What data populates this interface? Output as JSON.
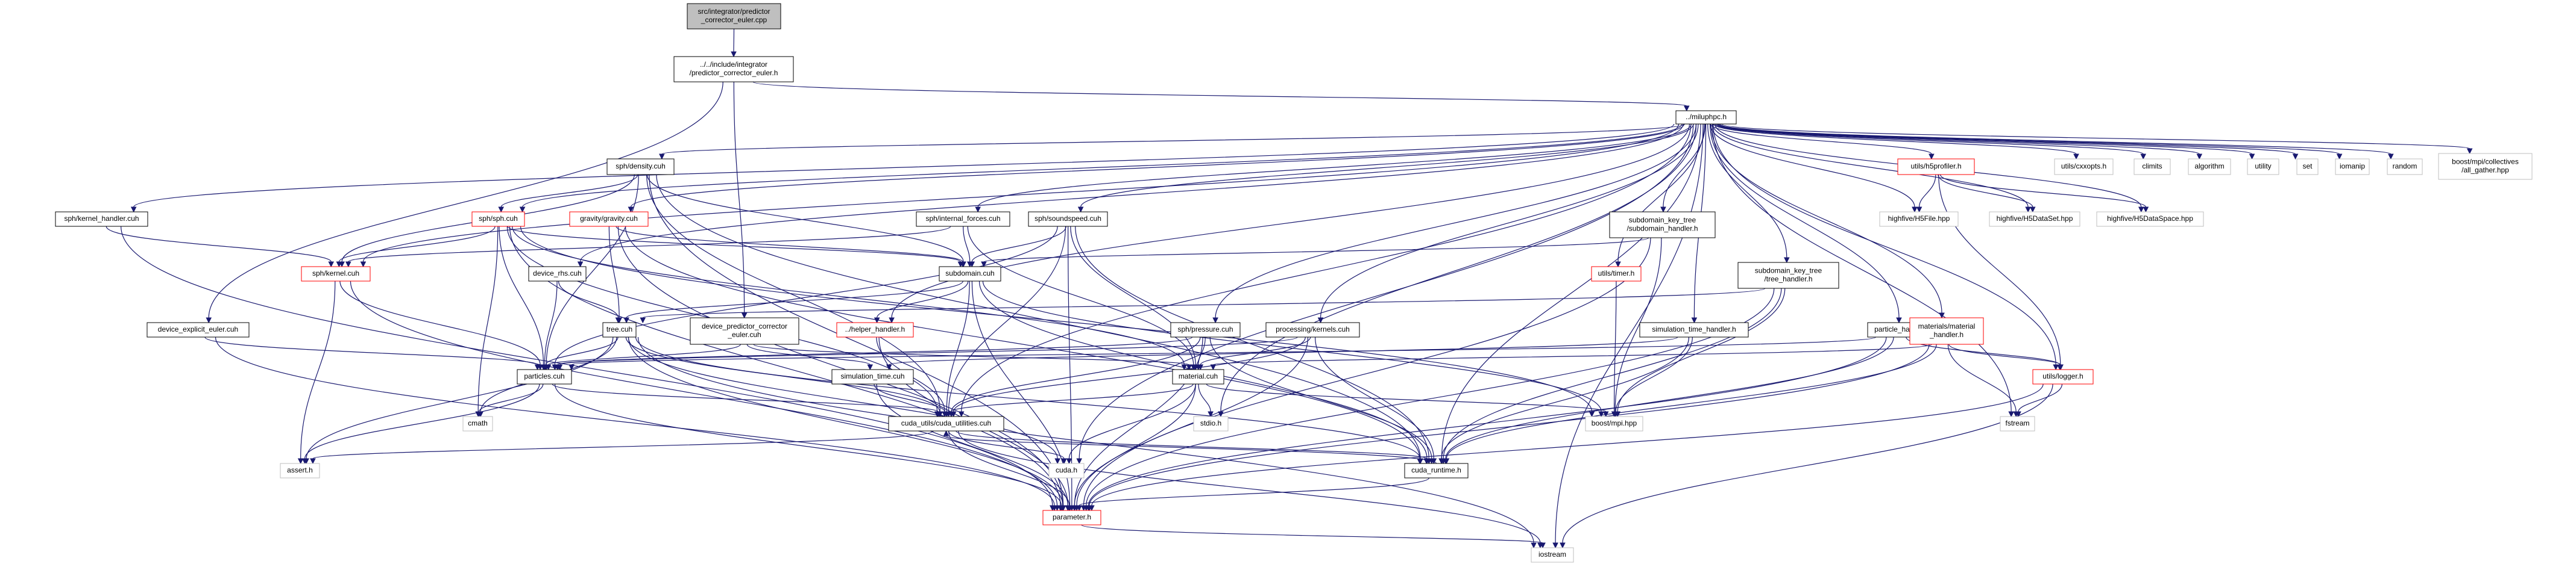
{
  "colors": {
    "edge": "#191970",
    "root_fill": "#bfbfbf",
    "node_border": "#000000",
    "missing_border": "#ff0000",
    "external_border": "#bfbfbf"
  },
  "nodes": [
    {
      "id": "root",
      "label": "src/integrator/predictor\n_corrector_euler.cpp",
      "style": "root"
    },
    {
      "id": "pce_h",
      "label": "../../include/integrator\n/predictor_corrector_euler.h",
      "style": "normal"
    },
    {
      "id": "miluphpc",
      "label": "../miluphpc.h",
      "style": "normal"
    },
    {
      "id": "density",
      "label": "sph/density.cuh",
      "style": "normal"
    },
    {
      "id": "kernel_handler",
      "label": "sph/kernel_handler.cuh",
      "style": "normal"
    },
    {
      "id": "sph_cuh",
      "label": "sph/sph.cuh",
      "style": "missing"
    },
    {
      "id": "gravity",
      "label": "gravity/gravity.cuh",
      "style": "missing"
    },
    {
      "id": "internal_forces",
      "label": "sph/internal_forces.cuh",
      "style": "normal"
    },
    {
      "id": "soundspeed",
      "label": "sph/soundspeed.cuh",
      "style": "normal"
    },
    {
      "id": "hdf5profiler",
      "label": "utils/h5profiler.h",
      "style": "missing"
    },
    {
      "id": "cxxopts",
      "label": "utils/cxxopts.h",
      "style": "external"
    },
    {
      "id": "climits",
      "label": "climits",
      "style": "external"
    },
    {
      "id": "algorithm",
      "label": "algorithm",
      "style": "external"
    },
    {
      "id": "utility",
      "label": "utility",
      "style": "external"
    },
    {
      "id": "set",
      "label": "set",
      "style": "external"
    },
    {
      "id": "iomanip",
      "label": "iomanip",
      "style": "external"
    },
    {
      "id": "random",
      "label": "random",
      "style": "external"
    },
    {
      "id": "all_gather",
      "label": "boost/mpi/collectives\n/all_gather.hpp",
      "style": "external"
    },
    {
      "id": "subdomain_handler",
      "label": "subdomain_key_tree\n/subdomain_handler.h",
      "style": "normal"
    },
    {
      "id": "h5file",
      "label": "highfive/H5File.hpp",
      "style": "external"
    },
    {
      "id": "h5dataset",
      "label": "highfive/H5DataSet.hpp",
      "style": "external"
    },
    {
      "id": "h5dataspace",
      "label": "highfive/H5DataSpace.hpp",
      "style": "external"
    },
    {
      "id": "device_rhs",
      "label": "device_rhs.cuh",
      "style": "normal"
    },
    {
      "id": "sph_kernel",
      "label": "sph/kernel.cuh",
      "style": "missing"
    },
    {
      "id": "subdomain_cuh",
      "label": "subdomain.cuh",
      "style": "normal"
    },
    {
      "id": "timer",
      "label": "utils/timer.h",
      "style": "missing"
    },
    {
      "id": "tree_handler",
      "label": "subdomain_key_tree\n/tree_handler.h",
      "style": "normal"
    },
    {
      "id": "device_explicit_euler",
      "label": "device_explicit_euler.cuh",
      "style": "normal"
    },
    {
      "id": "tree_cuh",
      "label": "tree.cuh",
      "style": "normal"
    },
    {
      "id": "device_pce",
      "label": "device_predictor_corrector\n_euler.cuh",
      "style": "normal"
    },
    {
      "id": "helper_handler",
      "label": "../helper_handler.h",
      "style": "missing"
    },
    {
      "id": "pressure",
      "label": "sph/pressure.cuh",
      "style": "normal"
    },
    {
      "id": "processing_kernels",
      "label": "processing/kernels.cuh",
      "style": "normal"
    },
    {
      "id": "simulation_time_handler",
      "label": "simulation_time_handler.h",
      "style": "normal"
    },
    {
      "id": "particle_handler",
      "label": "particle_handler.h",
      "style": "normal"
    },
    {
      "id": "material_handler",
      "label": "materials/material\n_handler.h",
      "style": "missing"
    },
    {
      "id": "particles_cuh",
      "label": "particles.cuh",
      "style": "normal"
    },
    {
      "id": "simulation_time_cuh",
      "label": "simulation_time.cuh",
      "style": "normal"
    },
    {
      "id": "material_cuh",
      "label": "material.cuh",
      "style": "normal"
    },
    {
      "id": "logger",
      "label": "utils/logger.h",
      "style": "missing"
    },
    {
      "id": "cmath",
      "label": "cmath",
      "style": "external"
    },
    {
      "id": "cuda_utilities",
      "label": "cuda_utils/cuda_utilities.cuh",
      "style": "normal"
    },
    {
      "id": "stdio",
      "label": "stdio.h",
      "style": "external"
    },
    {
      "id": "boost_mpi",
      "label": "boost/mpi.hpp",
      "style": "external"
    },
    {
      "id": "fstream",
      "label": "fstream",
      "style": "external"
    },
    {
      "id": "assert",
      "label": "assert.h",
      "style": "external"
    },
    {
      "id": "cuda_h",
      "label": "cuda.h",
      "style": "external"
    },
    {
      "id": "cuda_runtime",
      "label": "cuda_runtime.h",
      "style": "normal"
    },
    {
      "id": "parameter",
      "label": "parameter.h",
      "style": "missing"
    },
    {
      "id": "iostream",
      "label": "iostream",
      "style": "external"
    }
  ],
  "edges": [
    [
      "root",
      "pce_h"
    ],
    [
      "pce_h",
      "miluphpc"
    ],
    [
      "pce_h",
      "device_explicit_euler"
    ],
    [
      "pce_h",
      "device_pce"
    ],
    [
      "miluphpc",
      "density"
    ],
    [
      "miluphpc",
      "kernel_handler"
    ],
    [
      "miluphpc",
      "sph_cuh"
    ],
    [
      "miluphpc",
      "gravity"
    ],
    [
      "miluphpc",
      "internal_forces"
    ],
    [
      "miluphpc",
      "soundspeed"
    ],
    [
      "miluphpc",
      "hdf5profiler"
    ],
    [
      "miluphpc",
      "cxxopts"
    ],
    [
      "miluphpc",
      "climits"
    ],
    [
      "miluphpc",
      "algorithm"
    ],
    [
      "miluphpc",
      "utility"
    ],
    [
      "miluphpc",
      "set"
    ],
    [
      "miluphpc",
      "iomanip"
    ],
    [
      "miluphpc",
      "random"
    ],
    [
      "miluphpc",
      "all_gather"
    ],
    [
      "miluphpc",
      "subdomain_handler"
    ],
    [
      "miluphpc",
      "h5file"
    ],
    [
      "miluphpc",
      "h5dataset"
    ],
    [
      "miluphpc",
      "h5dataspace"
    ],
    [
      "miluphpc",
      "device_rhs"
    ],
    [
      "miluphpc",
      "sph_kernel"
    ],
    [
      "miluphpc",
      "timer"
    ],
    [
      "miluphpc",
      "tree_handler"
    ],
    [
      "miluphpc",
      "helper_handler"
    ],
    [
      "miluphpc",
      "pressure"
    ],
    [
      "miluphpc",
      "processing_kernels"
    ],
    [
      "miluphpc",
      "simulation_time_handler"
    ],
    [
      "miluphpc",
      "particle_handler"
    ],
    [
      "miluphpc",
      "material_handler"
    ],
    [
      "miluphpc",
      "logger"
    ],
    [
      "miluphpc",
      "fstream"
    ],
    [
      "miluphpc",
      "iostream"
    ],
    [
      "miluphpc",
      "cuda_runtime"
    ],
    [
      "miluphpc",
      "cuda_utilities"
    ],
    [
      "miluphpc",
      "stdio"
    ],
    [
      "miluphpc",
      "cuda_h"
    ],
    [
      "density",
      "sph_kernel"
    ],
    [
      "density",
      "sph_cuh"
    ],
    [
      "density",
      "subdomain_cuh"
    ],
    [
      "density",
      "particles_cuh"
    ],
    [
      "density",
      "parameter"
    ],
    [
      "density",
      "cuda_runtime"
    ],
    [
      "density",
      "cuda_utilities"
    ],
    [
      "kernel_handler",
      "sph_kernel"
    ],
    [
      "kernel_handler",
      "parameter"
    ],
    [
      "sph_cuh",
      "sph_kernel"
    ],
    [
      "sph_cuh",
      "subdomain_cuh"
    ],
    [
      "sph_cuh",
      "particles_cuh"
    ],
    [
      "sph_cuh",
      "parameter"
    ],
    [
      "sph_cuh",
      "material_cuh"
    ],
    [
      "sph_cuh",
      "cuda_utilities"
    ],
    [
      "sph_cuh",
      "cmath"
    ],
    [
      "sph_cuh",
      "boost_mpi"
    ],
    [
      "gravity",
      "subdomain_cuh"
    ],
    [
      "gravity",
      "tree_cuh"
    ],
    [
      "gravity",
      "parameter"
    ],
    [
      "gravity",
      "cuda_runtime"
    ],
    [
      "internal_forces",
      "sph_kernel"
    ],
    [
      "internal_forces",
      "subdomain_cuh"
    ],
    [
      "internal_forces",
      "material_cuh"
    ],
    [
      "soundspeed",
      "subdomain_cuh"
    ],
    [
      "soundspeed",
      "material_cuh"
    ],
    [
      "soundspeed",
      "particles_cuh"
    ],
    [
      "soundspeed",
      "parameter"
    ],
    [
      "soundspeed",
      "cuda_utilities"
    ],
    [
      "soundspeed",
      "cuda_runtime"
    ],
    [
      "hdf5profiler",
      "h5file"
    ],
    [
      "hdf5profiler",
      "h5dataset"
    ],
    [
      "hdf5profiler",
      "h5dataspace"
    ],
    [
      "hdf5profiler",
      "logger"
    ],
    [
      "subdomain_handler",
      "subdomain_cuh"
    ],
    [
      "subdomain_handler",
      "boost_mpi"
    ],
    [
      "subdomain_handler",
      "parameter"
    ],
    [
      "device_rhs",
      "tree_cuh"
    ],
    [
      "device_rhs",
      "particles_cuh"
    ],
    [
      "sph_kernel",
      "particles_cuh"
    ],
    [
      "sph_kernel",
      "parameter"
    ],
    [
      "sph_kernel",
      "assert"
    ],
    [
      "subdomain_cuh",
      "tree_cuh"
    ],
    [
      "subdomain_cuh",
      "helper_handler"
    ],
    [
      "subdomain_cuh",
      "cuda_utilities"
    ],
    [
      "subdomain_cuh",
      "parameter"
    ],
    [
      "subdomain_cuh",
      "boost_mpi"
    ],
    [
      "subdomain_cuh",
      "cuda_runtime"
    ],
    [
      "timer",
      "boost_mpi"
    ],
    [
      "tree_handler",
      "tree_cuh"
    ],
    [
      "tree_handler",
      "boost_mpi"
    ],
    [
      "tree_handler",
      "cuda_runtime"
    ],
    [
      "tree_handler",
      "parameter"
    ],
    [
      "device_explicit_euler",
      "particles_cuh"
    ],
    [
      "device_explicit_euler",
      "parameter"
    ],
    [
      "tree_cuh",
      "particles_cuh"
    ],
    [
      "tree_cuh",
      "cuda_utilities"
    ],
    [
      "tree_cuh",
      "parameter"
    ],
    [
      "tree_cuh",
      "cuda_h"
    ],
    [
      "tree_cuh",
      "cuda_runtime"
    ],
    [
      "tree_cuh",
      "assert"
    ],
    [
      "tree_cuh",
      "cmath"
    ],
    [
      "tree_cuh",
      "iostream"
    ],
    [
      "device_pce",
      "particles_cuh"
    ],
    [
      "device_pce",
      "material_cuh"
    ],
    [
      "device_pce",
      "simulation_time_cuh"
    ],
    [
      "helper_handler",
      "parameter"
    ],
    [
      "helper_handler",
      "cuda_utilities"
    ],
    [
      "pressure",
      "material_cuh"
    ],
    [
      "pressure",
      "particles_cuh"
    ],
    [
      "pressure",
      "parameter"
    ],
    [
      "pressure",
      "cuda_utilities"
    ],
    [
      "pressure",
      "cuda_runtime"
    ],
    [
      "processing_kernels",
      "material_cuh"
    ],
    [
      "processing_kernels",
      "particles_cuh"
    ],
    [
      "processing_kernels",
      "parameter"
    ],
    [
      "processing_kernels",
      "cuda_utilities"
    ],
    [
      "processing_kernels",
      "cuda_runtime"
    ],
    [
      "simulation_time_handler",
      "simulation_time_cuh"
    ],
    [
      "simulation_time_handler",
      "boost_mpi"
    ],
    [
      "simulation_time_handler",
      "cuda_runtime"
    ],
    [
      "particle_handler",
      "particles_cuh"
    ],
    [
      "particle_handler",
      "logger"
    ],
    [
      "particle_handler",
      "parameter"
    ],
    [
      "particle_handler",
      "cuda_runtime"
    ],
    [
      "material_handler",
      "material_cuh"
    ],
    [
      "material_handler",
      "logger"
    ],
    [
      "material_handler",
      "fstream"
    ],
    [
      "material_handler",
      "parameter"
    ],
    [
      "material_handler",
      "cuda_runtime"
    ],
    [
      "particles_cuh",
      "cuda_utilities"
    ],
    [
      "particles_cuh",
      "parameter"
    ],
    [
      "particles_cuh",
      "assert"
    ],
    [
      "particles_cuh",
      "cmath"
    ],
    [
      "simulation_time_cuh",
      "cuda_utilities"
    ],
    [
      "simulation_time_cuh",
      "parameter"
    ],
    [
      "material_cuh",
      "cuda_utilities"
    ],
    [
      "material_cuh",
      "parameter"
    ],
    [
      "material_cuh",
      "stdio"
    ],
    [
      "material_cuh",
      "cuda_h"
    ],
    [
      "material_cuh",
      "boost_mpi"
    ],
    [
      "logger",
      "fstream"
    ],
    [
      "logger",
      "iostream"
    ],
    [
      "logger",
      "parameter"
    ],
    [
      "cuda_utilities",
      "assert"
    ],
    [
      "cuda_utilities",
      "cuda_h"
    ],
    [
      "cuda_utilities",
      "cuda_runtime"
    ],
    [
      "cuda_utilities",
      "parameter"
    ],
    [
      "cuda_utilities",
      "iostream"
    ],
    [
      "cuda_runtime",
      "cuda_utilities"
    ],
    [
      "cuda_runtime",
      "parameter"
    ],
    [
      "parameter",
      "iostream"
    ]
  ]
}
